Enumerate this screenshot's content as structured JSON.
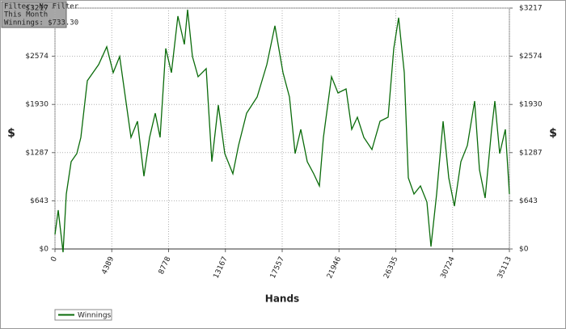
{
  "chart_data": {
    "type": "line",
    "annotations": [
      "Filter: No Filter",
      "This Month",
      "Winnings: $733.30"
    ],
    "x_label": "Hands",
    "y_label": "$",
    "xlim": [
      0,
      35113
    ],
    "xticks": [
      0,
      4389,
      8778,
      13167,
      17557,
      21946,
      26335,
      30724,
      35113
    ],
    "ylim": [
      0,
      3217
    ],
    "yticks": [
      {
        "value": 0,
        "label": "$0"
      },
      {
        "value": 643,
        "label": "$643"
      },
      {
        "value": 1287,
        "label": "$1287"
      },
      {
        "value": 1930,
        "label": "$1930"
      },
      {
        "value": 2574,
        "label": "$2574"
      },
      {
        "value": 3217,
        "label": "$3217"
      }
    ],
    "grid": true,
    "legend": "bottom-left",
    "x": [
      0,
      250,
      625,
      875,
      1250,
      1687,
      1999,
      2499,
      2937,
      3374,
      3999,
      4498,
      4998,
      5436,
      5873,
      6373,
      6873,
      7310,
      7748,
      8123,
      8560,
      8997,
      9497,
      9997,
      10247,
      10622,
      11059,
      11684,
      12122,
      12622,
      13121,
      13746,
      14183,
      14808,
      15620,
      16370,
      16995,
      17620,
      18120,
      18557,
      18994,
      19494,
      19994,
      20431,
      20744,
      21369,
      21869,
      22493,
      22930,
      23368,
      23867,
      24492,
      25117,
      25742,
      26179,
      26554,
      26991,
      27303,
      27741,
      28241,
      28740,
      29053,
      29490,
      29990,
      30428,
      30865,
      31365,
      31865,
      32427,
      32802,
      33239,
      33739,
      33989,
      34364,
      34801,
      35113
    ],
    "series": [
      {
        "name": "Winnings",
        "color": "#0a6b0a",
        "values": [
          194,
          518,
          -43,
          734,
          1166,
          1274,
          1490,
          2246,
          2354,
          2462,
          2700,
          2354,
          2570,
          2030,
          1490,
          1706,
          972,
          1490,
          1814,
          1490,
          2678,
          2354,
          3110,
          2732,
          3197,
          2570,
          2300,
          2408,
          1166,
          1922,
          1274,
          1004,
          1382,
          1814,
          2030,
          2462,
          2981,
          2354,
          2030,
          1274,
          1598,
          1166,
          1004,
          842,
          1490,
          2300,
          2084,
          2138,
          1598,
          1760,
          1490,
          1328,
          1706,
          1760,
          2678,
          3089,
          2354,
          950,
          734,
          842,
          626,
          32,
          734,
          1706,
          950,
          572,
          1166,
          1382,
          1976,
          1058,
          680,
          1598,
          1976,
          1274,
          1598,
          734
        ]
      }
    ]
  }
}
